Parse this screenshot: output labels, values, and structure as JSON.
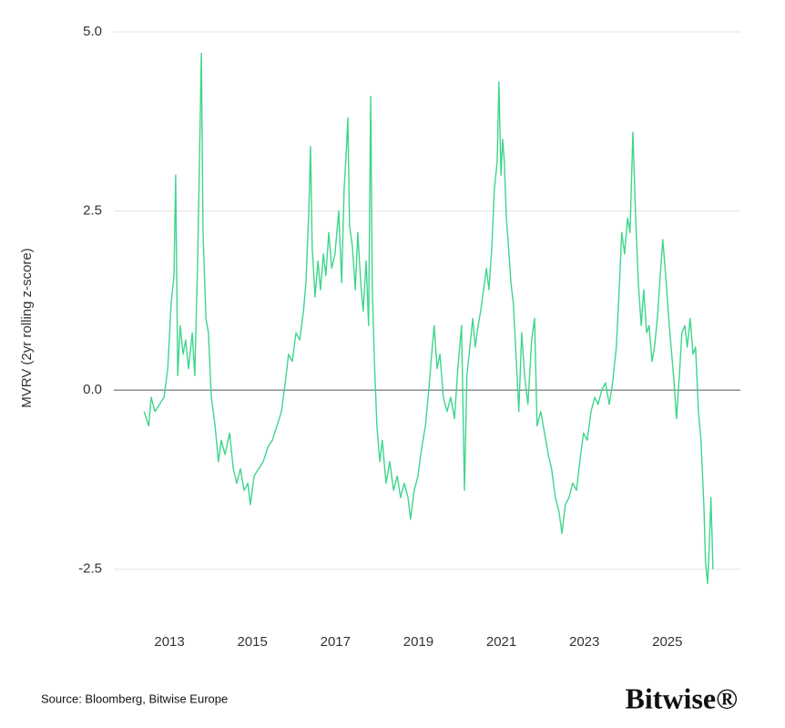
{
  "chart_data": {
    "type": "line",
    "y_label": "MVRV (2yr rolling z-score)",
    "source": "Source: Bloomberg, Bitwise Europe",
    "logo": "Bitwise®",
    "xlim": [
      2011.66,
      2026.76
    ],
    "xticks": [
      2013,
      2015,
      2017,
      2019,
      2021,
      2023,
      2025
    ],
    "ylim": [
      -3,
      5
    ],
    "yticks": [
      {
        "value": 5,
        "label": "5.0"
      },
      2.5,
      {
        "value": 0,
        "label": "0.0"
      },
      -2.5
    ],
    "grid": true,
    "series": [
      {
        "name": "MVRV",
        "color": "#3dd68c",
        "x": [
          2012.39,
          2012.5,
          2012.56,
          2012.65,
          2012.76,
          2012.87,
          2012.96,
          2013.04,
          2013.11,
          2013.15,
          2013.2,
          2013.26,
          2013.33,
          2013.39,
          2013.46,
          2013.55,
          2013.61,
          2013.68,
          2013.77,
          2013.81,
          2013.88,
          2013.94,
          2014.01,
          2014.1,
          2014.18,
          2014.25,
          2014.34,
          2014.45,
          2014.54,
          2014.62,
          2014.71,
          2014.8,
          2014.89,
          2014.95,
          2015.04,
          2015.15,
          2015.26,
          2015.37,
          2015.48,
          2015.59,
          2015.7,
          2015.79,
          2015.87,
          2015.96,
          2016.05,
          2016.14,
          2016.23,
          2016.29,
          2016.36,
          2016.4,
          2016.44,
          2016.51,
          2016.58,
          2016.64,
          2016.71,
          2016.77,
          2016.84,
          2016.91,
          2016.99,
          2017.08,
          2017.15,
          2017.21,
          2017.26,
          2017.3,
          2017.34,
          2017.41,
          2017.48,
          2017.54,
          2017.61,
          2017.67,
          2017.74,
          2017.8,
          2017.85,
          2017.89,
          2017.94,
          2018.0,
          2018.07,
          2018.13,
          2018.22,
          2018.31,
          2018.4,
          2018.49,
          2018.57,
          2018.66,
          2018.75,
          2018.81,
          2018.9,
          2018.99,
          2019.08,
          2019.17,
          2019.25,
          2019.32,
          2019.38,
          2019.45,
          2019.52,
          2019.6,
          2019.69,
          2019.78,
          2019.87,
          2019.95,
          2020.04,
          2020.11,
          2020.17,
          2020.24,
          2020.31,
          2020.37,
          2020.44,
          2020.5,
          2020.57,
          2020.64,
          2020.7,
          2020.77,
          2020.83,
          2020.9,
          2020.94,
          2020.99,
          2021.03,
          2021.07,
          2021.12,
          2021.16,
          2021.23,
          2021.29,
          2021.36,
          2021.42,
          2021.49,
          2021.56,
          2021.64,
          2021.73,
          2021.8,
          2021.86,
          2021.95,
          2022.04,
          2022.13,
          2022.21,
          2022.3,
          2022.39,
          2022.46,
          2022.54,
          2022.63,
          2022.72,
          2022.81,
          2022.89,
          2022.98,
          2023.07,
          2023.16,
          2023.25,
          2023.33,
          2023.42,
          2023.51,
          2023.6,
          2023.68,
          2023.77,
          2023.84,
          2023.9,
          2023.97,
          2024.04,
          2024.1,
          2024.17,
          2024.23,
          2024.3,
          2024.37,
          2024.43,
          2024.5,
          2024.56,
          2024.63,
          2024.69,
          2024.76,
          2024.83,
          2024.89,
          2024.96,
          2025.02,
          2025.09,
          2025.15,
          2025.22,
          2025.29,
          2025.35,
          2025.42,
          2025.48,
          2025.55,
          2025.62,
          2025.68,
          2025.75,
          2025.81,
          2025.88,
          2025.92,
          2025.97,
          2026.01,
          2026.05,
          2026.1
        ],
        "values": [
          -0.3,
          -0.5,
          -0.1,
          -0.3,
          -0.2,
          -0.1,
          0.3,
          1.2,
          1.6,
          3.0,
          0.2,
          0.9,
          0.5,
          0.7,
          0.3,
          0.8,
          0.2,
          1.8,
          4.7,
          2.2,
          1.0,
          0.8,
          -0.1,
          -0.5,
          -1.0,
          -0.7,
          -0.9,
          -0.6,
          -1.1,
          -1.3,
          -1.1,
          -1.4,
          -1.3,
          -1.6,
          -1.2,
          -1.1,
          -1.0,
          -0.8,
          -0.7,
          -0.5,
          -0.3,
          0.1,
          0.5,
          0.4,
          0.8,
          0.7,
          1.1,
          1.5,
          2.5,
          3.4,
          2.0,
          1.3,
          1.8,
          1.4,
          1.9,
          1.6,
          2.2,
          1.7,
          1.9,
          2.5,
          1.5,
          2.8,
          3.3,
          3.8,
          2.3,
          2.0,
          1.4,
          2.2,
          1.5,
          1.1,
          1.8,
          0.9,
          4.1,
          1.4,
          0.4,
          -0.5,
          -1.0,
          -0.7,
          -1.3,
          -1.0,
          -1.4,
          -1.2,
          -1.5,
          -1.3,
          -1.5,
          -1.8,
          -1.4,
          -1.2,
          -0.8,
          -0.5,
          0.0,
          0.5,
          0.9,
          0.3,
          0.5,
          -0.1,
          -0.3,
          -0.1,
          -0.4,
          0.3,
          0.9,
          -1.4,
          0.2,
          0.6,
          1.0,
          0.6,
          0.9,
          1.1,
          1.4,
          1.7,
          1.4,
          2.0,
          2.8,
          3.2,
          4.3,
          3.0,
          3.5,
          3.2,
          2.4,
          2.1,
          1.5,
          1.2,
          0.4,
          -0.3,
          0.8,
          0.2,
          -0.2,
          0.7,
          1.0,
          -0.5,
          -0.3,
          -0.6,
          -0.9,
          -1.1,
          -1.5,
          -1.7,
          -2.0,
          -1.6,
          -1.5,
          -1.3,
          -1.4,
          -1.0,
          -0.6,
          -0.7,
          -0.3,
          -0.1,
          -0.2,
          0.0,
          0.1,
          -0.2,
          0.1,
          0.6,
          1.4,
          2.2,
          1.9,
          2.4,
          2.2,
          3.6,
          2.5,
          1.5,
          0.9,
          1.4,
          0.8,
          0.9,
          0.4,
          0.6,
          1.0,
          1.6,
          2.1,
          1.6,
          1.1,
          0.6,
          0.2,
          -0.4,
          0.2,
          0.8,
          0.9,
          0.6,
          1.0,
          0.5,
          0.6,
          -0.3,
          -0.7,
          -1.6,
          -2.4,
          -2.7,
          -2.2,
          -1.5,
          -2.5
        ]
      }
    ]
  }
}
